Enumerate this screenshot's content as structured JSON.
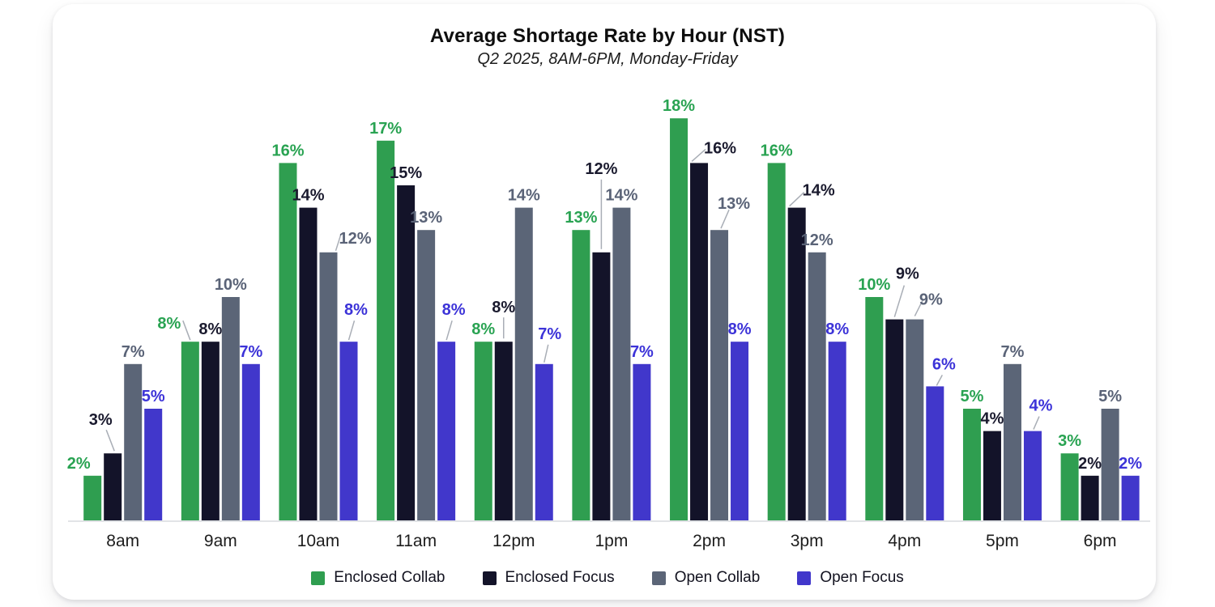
{
  "header": {
    "title": "Average Shortage Rate by Hour (NST)",
    "subtitle": "Q2 2025, 8AM-6PM, Monday-Friday"
  },
  "chart_data": {
    "type": "bar",
    "title": "Average Shortage Rate by Hour (NST)",
    "subtitle": "Q2 2025, 8AM-6PM, Monday-Friday",
    "categories": [
      "8am",
      "9am",
      "10am",
      "11am",
      "12pm",
      "1pm",
      "2pm",
      "3pm",
      "4pm",
      "5pm",
      "6pm"
    ],
    "series": [
      {
        "name": "Enclosed Collab",
        "color": "#2f9e50",
        "label_color": "#29a352",
        "values": [
          2,
          8,
          16,
          17,
          8,
          13,
          18,
          16,
          10,
          5,
          3
        ]
      },
      {
        "name": "Enclosed Focus",
        "color": "#131329",
        "label_color": "#1a1a2e",
        "values": [
          3,
          8,
          14,
          15,
          8,
          12,
          16,
          14,
          9,
          4,
          2
        ]
      },
      {
        "name": "Open Collab",
        "color": "#5b6577",
        "label_color": "#5a6377",
        "values": [
          7,
          10,
          12,
          13,
          14,
          14,
          13,
          12,
          9,
          7,
          5
        ]
      },
      {
        "name": "Open Focus",
        "color": "#4137cb",
        "label_color": "#3c33d8",
        "values": [
          5,
          7,
          8,
          8,
          7,
          7,
          8,
          8,
          6,
          4,
          2
        ]
      }
    ],
    "value_suffix": "%",
    "ylim": [
      0,
      20
    ],
    "grid": false,
    "y_axis_visible": false,
    "legend_position": "bottom",
    "theme": {
      "background": "#ffffff",
      "axis_line_color": "#d9dcdf",
      "leader_line_color": "#a9aeb6",
      "tick_label_color": "#1d1d1d",
      "title_color": "#0e0e0e",
      "subtitle_color": "#1c1c1c",
      "legend_text_color": "#131320"
    }
  }
}
